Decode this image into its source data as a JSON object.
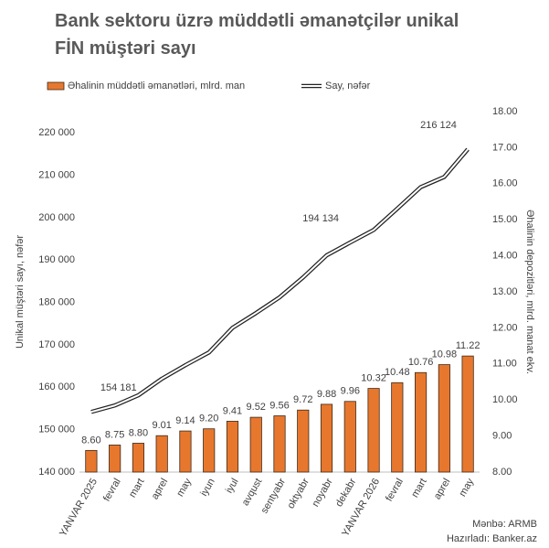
{
  "chart_data": {
    "type": "bar-line",
    "title": "Bank sektoru üzrə müddətli əmanətçilər unikal FİN müştəri sayı",
    "y_label": "Unikal müştəri sayı, nəfər",
    "y2_label": "Əhalinin depozitləri, mlrd. manat ekv.",
    "source": "Mənbə:  ARMB",
    "credit": "Hazırladı: Banker.az",
    "categories": [
      "YANVAR 2025",
      "fevral",
      "mart",
      "aprel",
      "may",
      "iyun",
      "iyul",
      "avqust",
      "sentyabr",
      "oktyabr",
      "noyabr",
      "dekabr",
      "YANVAR 2026",
      "fevral",
      "mart",
      "aprel",
      "may"
    ],
    "series": [
      {
        "name": "Əhalinin müddətli əmanətləri, mlrd. man",
        "type": "bar",
        "axis": "y2",
        "color": "#e8772e",
        "values": [
          8.6,
          8.75,
          8.8,
          9.01,
          9.14,
          9.2,
          9.41,
          9.52,
          9.56,
          9.72,
          9.88,
          9.96,
          10.32,
          10.48,
          10.76,
          10.98,
          11.22
        ],
        "value_labels": [
          "8.60",
          "8.75",
          "8.80",
          "9.01",
          "9.14",
          "9.20",
          "9.41",
          "9.52",
          "9.56",
          "9.72",
          "9.88",
          "9.96",
          "10.32",
          "10.48",
          "10.76",
          "10.98",
          "11.22"
        ]
      },
      {
        "name": "Say, nəfər",
        "type": "line",
        "axis": "y",
        "color": "#222222",
        "values": [
          154181,
          155700,
          158100,
          162000,
          165200,
          168200,
          174000,
          177500,
          181200,
          185900,
          191100,
          194134,
          197100,
          202100,
          207200,
          209600,
          216124
        ],
        "value_labels": [
          "154 181",
          null,
          null,
          null,
          null,
          null,
          null,
          null,
          null,
          null,
          null,
          "194 134",
          null,
          null,
          null,
          null,
          "216 124"
        ]
      }
    ],
    "ylim": [
      140000,
      225000
    ],
    "yticks": [
      {
        "value": 140000,
        "label": "140 000"
      },
      {
        "value": 150000,
        "label": "150 000"
      },
      {
        "value": 160000,
        "label": "160 000"
      },
      {
        "value": 170000,
        "label": "170 000"
      },
      {
        "value": 180000,
        "label": "180 000"
      },
      {
        "value": 190000,
        "label": "190 000"
      },
      {
        "value": 200000,
        "label": "200 000"
      },
      {
        "value": 210000,
        "label": "210 000"
      },
      {
        "value": 220000,
        "label": "220 000"
      }
    ],
    "y2lim": [
      8,
      18
    ],
    "y2ticks": [
      {
        "value": 8,
        "label": "8.00"
      },
      {
        "value": 9,
        "label": "9.00"
      },
      {
        "value": 10,
        "label": "10.00"
      },
      {
        "value": 11,
        "label": "11.00"
      },
      {
        "value": 12,
        "label": "12.00"
      },
      {
        "value": 13,
        "label": "13.00"
      },
      {
        "value": 14,
        "label": "14.00"
      },
      {
        "value": 15,
        "label": "15.00"
      },
      {
        "value": 16,
        "label": "16.00"
      },
      {
        "value": 17,
        "label": "17.00"
      },
      {
        "value": 18,
        "label": "18.00"
      }
    ]
  }
}
